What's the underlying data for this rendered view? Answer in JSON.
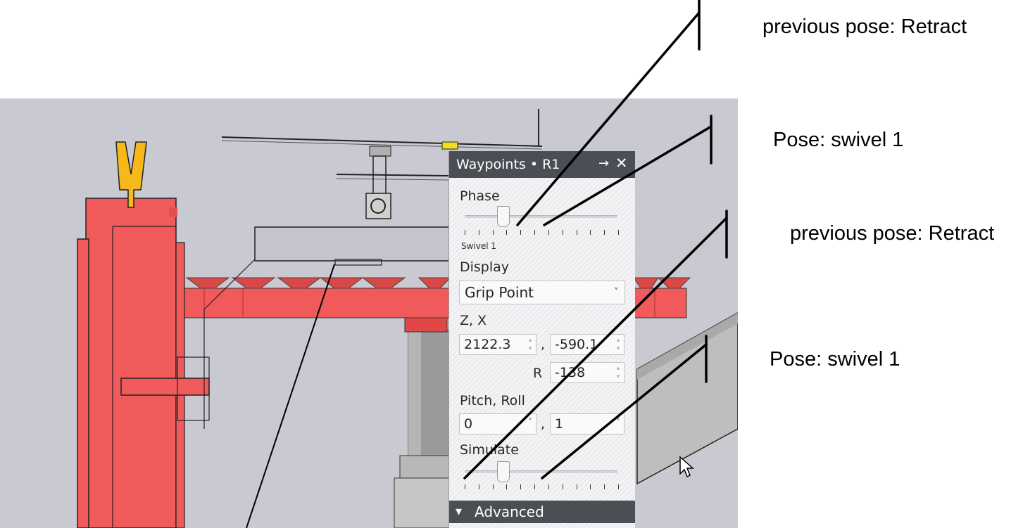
{
  "panel": {
    "title": "Waypoints • R1",
    "pin_icon": "pin-icon",
    "close_icon": "close-icon",
    "phase": {
      "label": "Phase",
      "value_label": "Swivel 1",
      "level": 0.25
    },
    "display": {
      "label": "Display",
      "selected": "Grip Point"
    },
    "zx": {
      "label": "Z, X",
      "z": "2122.3",
      "x": "-590.1",
      "separator": ","
    },
    "r": {
      "label": "R",
      "value": "-138"
    },
    "pitch_roll": {
      "label": "Pitch, Roll",
      "pitch": "0",
      "roll": "1",
      "separator": ","
    },
    "simulate": {
      "label": "Simulate",
      "level": 0.25
    },
    "advanced": {
      "label": "Advanced"
    }
  },
  "annotations": [
    {
      "text": "previous pose: Retract"
    },
    {
      "text": "Pose: swivel 1"
    },
    {
      "text": "previous pose: Retract"
    },
    {
      "text": "Pose: swivel 1"
    }
  ],
  "colors": {
    "viewport_bg": "#c9c9d1",
    "machine_red": "#f05a5a",
    "gripper_yellow": "#f7b81c",
    "panel_header": "#4b4e55"
  }
}
